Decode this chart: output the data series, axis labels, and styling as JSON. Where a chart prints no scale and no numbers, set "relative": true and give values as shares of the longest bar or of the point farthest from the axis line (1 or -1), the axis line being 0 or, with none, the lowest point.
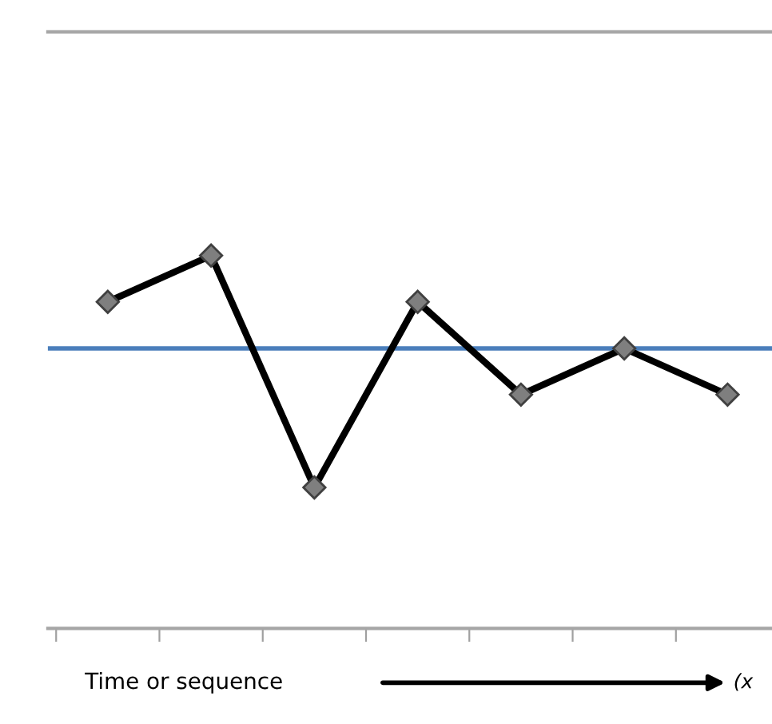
{
  "chart_data": {
    "type": "line",
    "relative": true,
    "xlabel": "Time or sequence",
    "annotations": [
      "(x"
    ],
    "categories": [
      null,
      null,
      null,
      null,
      null,
      null,
      null
    ],
    "series": [
      {
        "color": "#000000",
        "values": [
          0.876,
          1,
          0.378,
          0.876,
          0.627,
          0.751,
          0.627
        ]
      }
    ],
    "ref_lines": [
      {
        "axis": "y",
        "value": 0.751,
        "color": "#4a7ebb",
        "line_style": "solid"
      }
    ],
    "marker": "diamond",
    "line_style": "solid",
    "grid": false,
    "legend": false
  }
}
